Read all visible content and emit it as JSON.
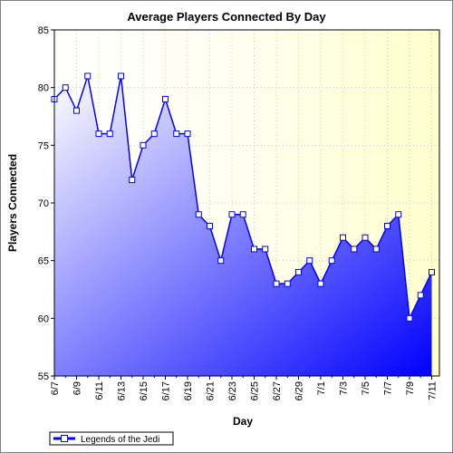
{
  "chart_data": {
    "type": "area",
    "title": "Average Players Connected By Day",
    "xlabel": "Day",
    "ylabel": "Players Connected",
    "ylim": [
      55,
      85
    ],
    "yticks": [
      55,
      60,
      65,
      70,
      75,
      80,
      85
    ],
    "grid": true,
    "legend_position": "bottom-left",
    "x": [
      "6/7",
      "6/8",
      "6/9",
      "6/10",
      "6/11",
      "6/12",
      "6/13",
      "6/14",
      "6/15",
      "6/16",
      "6/17",
      "6/18",
      "6/19",
      "6/20",
      "6/21",
      "6/22",
      "6/23",
      "6/24",
      "6/25",
      "6/26",
      "6/27",
      "6/28",
      "6/29",
      "6/30",
      "7/1",
      "7/2",
      "7/3",
      "7/4",
      "7/5",
      "7/6",
      "7/7",
      "7/8",
      "7/9",
      "7/10",
      "7/11"
    ],
    "xtick_labels": [
      "6/7",
      "6/9",
      "6/11",
      "6/13",
      "6/15",
      "6/17",
      "6/19",
      "6/21",
      "6/23",
      "6/25",
      "6/27",
      "6/29",
      "7/1",
      "7/3",
      "7/5",
      "7/7",
      "7/9",
      "7/11"
    ],
    "series": [
      {
        "name": "Legends of the Jedi",
        "color": "#0000ff",
        "values": [
          79,
          80,
          78,
          81,
          76,
          76,
          81,
          72,
          75,
          76,
          79,
          76,
          76,
          69,
          68,
          65,
          69,
          69,
          66,
          66,
          63,
          63,
          64,
          65,
          63,
          65,
          67,
          66,
          67,
          66,
          68,
          69,
          60,
          62,
          64
        ]
      }
    ]
  }
}
